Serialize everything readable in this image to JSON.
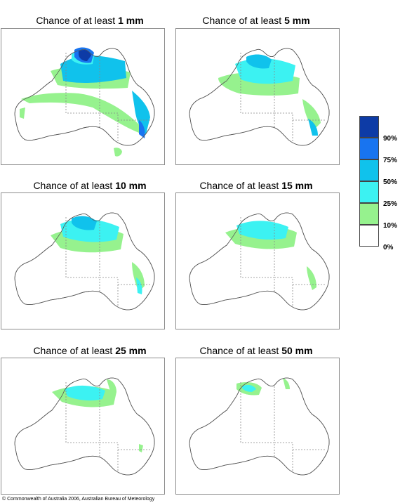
{
  "panels": [
    {
      "prefix": "Chance of at least ",
      "amount": "1 mm"
    },
    {
      "prefix": "Chance of at least ",
      "amount": "5 mm"
    },
    {
      "prefix": "Chance of at least ",
      "amount": "10 mm"
    },
    {
      "prefix": "Chance of at least ",
      "amount": "15 mm"
    },
    {
      "prefix": "Chance of at least ",
      "amount": "25 mm"
    },
    {
      "prefix": "Chance of at least ",
      "amount": "50 mm"
    }
  ],
  "legend": {
    "colors": [
      "#0d3ba6",
      "#1874f0",
      "#10c2ec",
      "#3cf2f2",
      "#96f28e",
      "#ffffff"
    ],
    "labels": [
      "90%",
      "75%",
      "50%",
      "25%",
      "10%",
      "0%"
    ]
  },
  "copyright": "© Commonwealth of Australia 2006, Australian Bureau of Meteorology"
}
